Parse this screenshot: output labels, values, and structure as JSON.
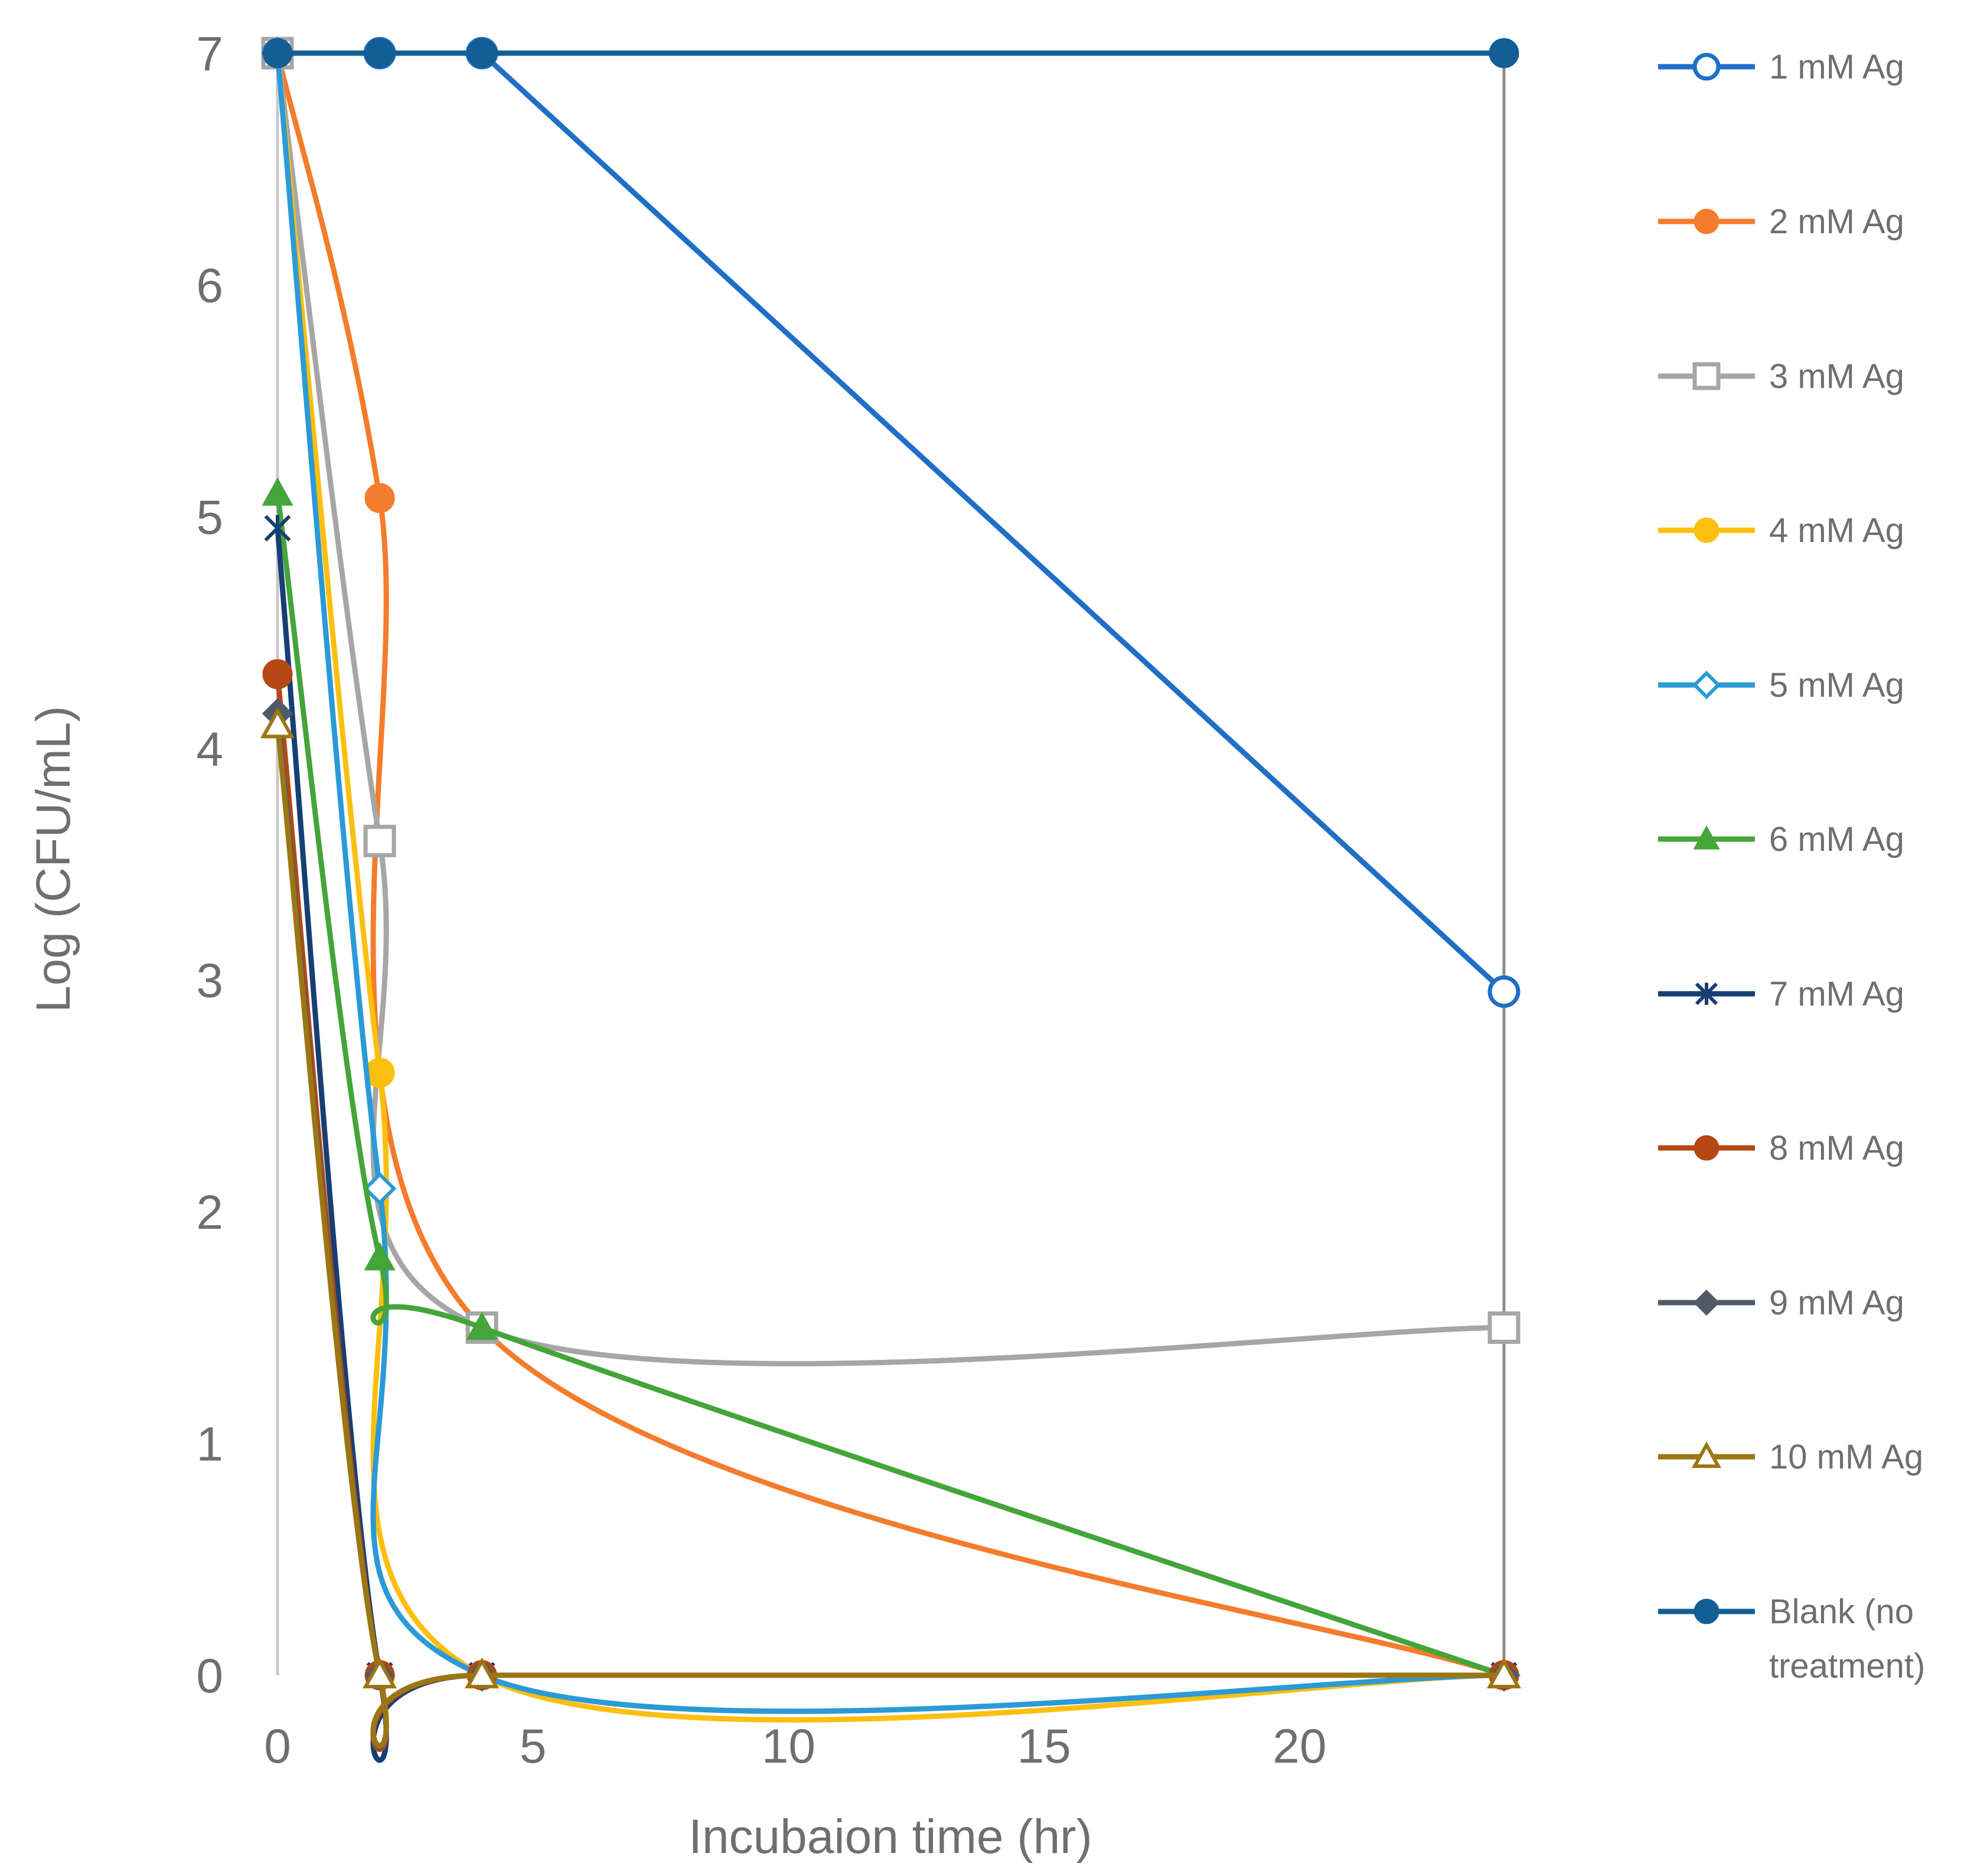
{
  "chart_data": {
    "type": "line",
    "title": "",
    "xlabel": "Incubaion time (hr)",
    "ylabel": "Log (CFU/mL)",
    "xlim": [
      0,
      24
    ],
    "ylim": [
      0,
      7
    ],
    "xticks": [
      0,
      5,
      10,
      15,
      20
    ],
    "yticks": [
      0,
      1,
      2,
      3,
      4,
      5,
      6,
      7
    ],
    "legend_position": "right",
    "grid": false,
    "series": [
      {
        "name": "1 mM Ag",
        "color": "#1f6fc6",
        "marker": "circle-open",
        "smooth": false,
        "points": [
          [
            0,
            7
          ],
          [
            2,
            7
          ],
          [
            4,
            7
          ],
          [
            24,
            2.95
          ]
        ]
      },
      {
        "name": "2 mM Ag",
        "color": "#f47c2c",
        "marker": "circle-filled",
        "smooth": true,
        "points": [
          [
            0,
            7
          ],
          [
            2,
            5.08
          ],
          [
            4,
            1.5
          ],
          [
            24,
            0
          ]
        ]
      },
      {
        "name": "3 mM Ag",
        "color": "#a6a6a6",
        "marker": "square-open",
        "smooth": true,
        "points": [
          [
            0,
            7
          ],
          [
            2,
            3.6
          ],
          [
            4,
            1.5
          ],
          [
            24,
            1.5
          ]
        ]
      },
      {
        "name": "4 mM Ag",
        "color": "#fbbf0f",
        "marker": "circle-filled",
        "smooth": true,
        "points": [
          [
            0,
            7
          ],
          [
            2,
            2.6
          ],
          [
            4,
            0
          ],
          [
            24,
            0
          ]
        ]
      },
      {
        "name": "5 mM Ag",
        "color": "#2b9ad6",
        "marker": "diamond-open",
        "smooth": true,
        "points": [
          [
            0,
            7
          ],
          [
            2,
            2.1
          ],
          [
            4,
            0
          ],
          [
            24,
            0
          ]
        ]
      },
      {
        "name": "6 mM Ag",
        "color": "#44a53a",
        "marker": "triangle-filled",
        "smooth": true,
        "points": [
          [
            0,
            5.1
          ],
          [
            2,
            1.8
          ],
          [
            4,
            1.5
          ],
          [
            24,
            0
          ]
        ]
      },
      {
        "name": "7 mM Ag",
        "color": "#173f73",
        "marker": "star",
        "smooth": true,
        "points": [
          [
            0,
            4.95
          ],
          [
            2,
            0
          ],
          [
            4,
            0
          ],
          [
            24,
            0
          ]
        ]
      },
      {
        "name": "8 mM Ag",
        "color": "#b54814",
        "marker": "circle-filled",
        "smooth": true,
        "points": [
          [
            0,
            4.32
          ],
          [
            2,
            0
          ],
          [
            4,
            0
          ],
          [
            24,
            0
          ]
        ]
      },
      {
        "name": "9 mM Ag",
        "color": "#505a66",
        "marker": "diamond-filled",
        "smooth": true,
        "points": [
          [
            0,
            4.15
          ],
          [
            2,
            0
          ],
          [
            4,
            0
          ],
          [
            24,
            0
          ]
        ]
      },
      {
        "name": "10 mM Ag",
        "color": "#9c7613",
        "marker": "triangle-open",
        "smooth": true,
        "points": [
          [
            0,
            4.1
          ],
          [
            2,
            0
          ],
          [
            4,
            0
          ],
          [
            24,
            0
          ]
        ]
      },
      {
        "name": "Blank (no treatment)",
        "legend_lines": [
          "Blank (no",
          "treatment)"
        ],
        "color": "#145e96",
        "marker": "circle-filled",
        "smooth": false,
        "points": [
          [
            0,
            7
          ],
          [
            2,
            7
          ],
          [
            4,
            7
          ],
          [
            24,
            7
          ]
        ]
      }
    ]
  }
}
